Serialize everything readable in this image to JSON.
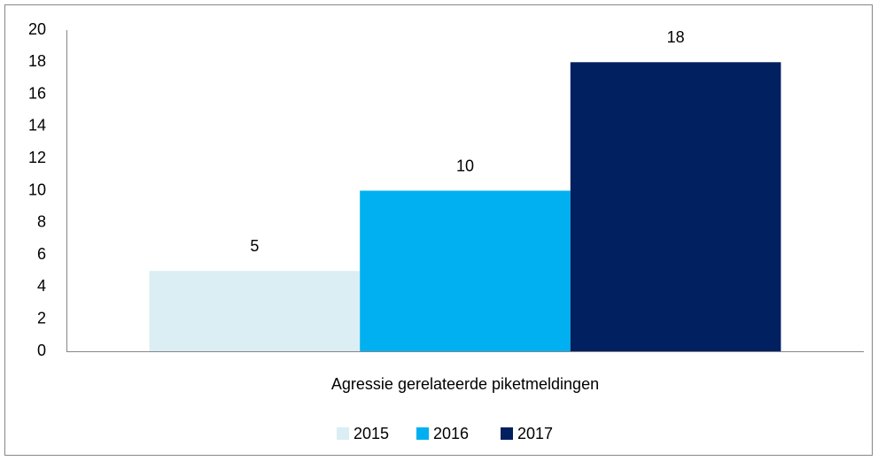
{
  "chart_data": {
    "type": "bar",
    "categories": [
      "Agressie gerelateerde piketmeldingen"
    ],
    "series": [
      {
        "name": "2015",
        "color": "#daeef3",
        "values": [
          5
        ]
      },
      {
        "name": "2016",
        "color": "#00b0f0",
        "values": [
          10
        ]
      },
      {
        "name": "2017",
        "color": "#002060",
        "values": [
          18
        ]
      }
    ],
    "ylim": [
      0,
      20
    ],
    "yticks": [
      0,
      2,
      4,
      6,
      8,
      10,
      12,
      14,
      16,
      18,
      20
    ],
    "grid": false,
    "legend": "bottom"
  }
}
